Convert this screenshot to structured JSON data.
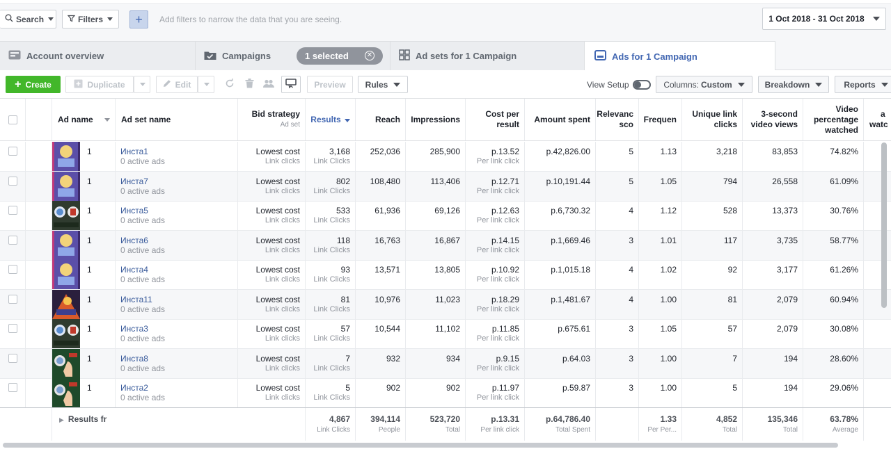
{
  "filterbar": {
    "search_label": "Search",
    "filters_label": "Filters",
    "add_label": "+",
    "placeholder": "Add filters to narrow the data that you are seeing.",
    "date_range": "1 Oct 2018 - 31 Oct 2018"
  },
  "tabs": {
    "account": "Account overview",
    "campaigns": "Campaigns",
    "selected": "1 selected",
    "adsets": "Ad sets for 1 Campaign",
    "ads": "Ads for 1 Campaign"
  },
  "toolbar": {
    "create": "Create",
    "duplicate": "Duplicate",
    "edit": "Edit",
    "preview": "Preview",
    "rules": "Rules",
    "view_setup": "View Setup",
    "columns_prefix": "Columns:",
    "columns_value": "Custom",
    "breakdown": "Breakdown",
    "reports": "Reports"
  },
  "headers": {
    "ad_name": "Ad name",
    "ad_set_name": "Ad set name",
    "bid_strategy": "Bid strategy",
    "bid_strategy_sub": "Ad set",
    "results": "Results",
    "reach": "Reach",
    "impressions": "Impressions",
    "cost_per_result_1": "Cost per",
    "cost_per_result_2": "result",
    "amount_spent": "Amount spent",
    "relevance_1": "Relevanc",
    "relevance_2": "sco",
    "frequency": "Frequen",
    "unique_1": "Unique link",
    "unique_2": "clicks",
    "video3_1": "3-second",
    "video3_2": "video views",
    "vpw_1": "Video",
    "vpw_2": "percentage",
    "vpw_3": "watched",
    "next_1": "a",
    "next_2": "watc"
  },
  "rows": [
    {
      "num": "1",
      "adset": "Инста1",
      "active": "0 active ads",
      "bid": "Lowest cost",
      "bid_sub": "Link clicks",
      "results": "3,168",
      "results_sub": "Link Clicks",
      "reach": "252,036",
      "impressions": "285,900",
      "cpr": "p.13.52",
      "cpr_sub": "Per link click",
      "spent": "p.42,826.00",
      "relevance": "5",
      "frequency": "1.13",
      "unique": "3,218",
      "video3": "83,853",
      "vpw": "74.82%"
    },
    {
      "num": "1",
      "adset": "Инста7",
      "active": "0 active ads",
      "bid": "Lowest cost",
      "bid_sub": "Link clicks",
      "results": "802",
      "results_sub": "Link Clicks",
      "reach": "108,480",
      "impressions": "113,406",
      "cpr": "p.12.71",
      "cpr_sub": "Per link click",
      "spent": "p.10,191.44",
      "relevance": "5",
      "frequency": "1.05",
      "unique": "794",
      "video3": "26,558",
      "vpw": "61.09%"
    },
    {
      "num": "1",
      "adset": "Инста5",
      "active": "0 active ads",
      "bid": "Lowest cost",
      "bid_sub": "Link clicks",
      "results": "533",
      "results_sub": "Link Clicks",
      "reach": "61,936",
      "impressions": "69,126",
      "cpr": "p.12.63",
      "cpr_sub": "Per link click",
      "spent": "p.6,730.32",
      "relevance": "4",
      "frequency": "1.12",
      "unique": "528",
      "video3": "13,373",
      "vpw": "30.76%"
    },
    {
      "num": "1",
      "adset": "Инста6",
      "active": "0 active ads",
      "bid": "Lowest cost",
      "bid_sub": "Link clicks",
      "results": "118",
      "results_sub": "Link Clicks",
      "reach": "16,763",
      "impressions": "16,867",
      "cpr": "p.14.15",
      "cpr_sub": "Per link click",
      "spent": "p.1,669.46",
      "relevance": "3",
      "frequency": "1.01",
      "unique": "117",
      "video3": "3,735",
      "vpw": "58.77%"
    },
    {
      "num": "1",
      "adset": "Инста4",
      "active": "0 active ads",
      "bid": "Lowest cost",
      "bid_sub": "Link clicks",
      "results": "93",
      "results_sub": "Link Clicks",
      "reach": "13,571",
      "impressions": "13,805",
      "cpr": "p.10.92",
      "cpr_sub": "Per link click",
      "spent": "p.1,015.18",
      "relevance": "4",
      "frequency": "1.02",
      "unique": "92",
      "video3": "3,177",
      "vpw": "61.26%"
    },
    {
      "num": "1",
      "adset": "Инста11",
      "active": "0 active ads",
      "bid": "Lowest cost",
      "bid_sub": "Link clicks",
      "results": "81",
      "results_sub": "Link Clicks",
      "reach": "10,976",
      "impressions": "11,023",
      "cpr": "p.18.29",
      "cpr_sub": "Per link click",
      "spent": "p.1,481.67",
      "relevance": "4",
      "frequency": "1.00",
      "unique": "81",
      "video3": "2,079",
      "vpw": "60.94%"
    },
    {
      "num": "1",
      "adset": "Инста3",
      "active": "0 active ads",
      "bid": "Lowest cost",
      "bid_sub": "Link clicks",
      "results": "57",
      "results_sub": "Link Clicks",
      "reach": "10,544",
      "impressions": "11,102",
      "cpr": "p.11.85",
      "cpr_sub": "Per link click",
      "spent": "p.675.61",
      "relevance": "3",
      "frequency": "1.05",
      "unique": "57",
      "video3": "2,079",
      "vpw": "30.08%"
    },
    {
      "num": "1",
      "adset": "Инста8",
      "active": "0 active ads",
      "bid": "Lowest cost",
      "bid_sub": "Link clicks",
      "results": "7",
      "results_sub": "Link Clicks",
      "reach": "932",
      "impressions": "934",
      "cpr": "p.9.15",
      "cpr_sub": "Per link click",
      "spent": "p.64.03",
      "relevance": "3",
      "frequency": "1.00",
      "unique": "7",
      "video3": "194",
      "vpw": "28.60%"
    },
    {
      "num": "1",
      "adset": "Инста2",
      "active": "0 active ads",
      "bid": "Lowest cost",
      "bid_sub": "Link clicks",
      "results": "5",
      "results_sub": "Link Clicks",
      "reach": "902",
      "impressions": "902",
      "cpr": "p.11.97",
      "cpr_sub": "Per link click",
      "spent": "p.59.87",
      "relevance": "3",
      "frequency": "1.00",
      "unique": "5",
      "video3": "194",
      "vpw": "29.06%"
    }
  ],
  "thumbnails": [
    "purple",
    "purple",
    "badge",
    "purple",
    "purple",
    "orange",
    "badge",
    "green",
    "green"
  ],
  "footer": {
    "label": "Results fr",
    "results": "4,867",
    "results_sub": "Link Clicks",
    "reach": "394,114",
    "reach_sub": "People",
    "impressions": "523,720",
    "impressions_sub": "Total",
    "cpr": "p.13.31",
    "cpr_sub": "Per link click",
    "spent": "p.64,786.40",
    "spent_sub": "Total Spent",
    "frequency": "1.33",
    "frequency_sub": "Per Per...",
    "unique": "4,852",
    "unique_sub": "Total",
    "video3": "135,346",
    "video3_sub": "Total",
    "vpw": "63.78%",
    "vpw_sub": "Average"
  },
  "colors": {
    "accent": "#4267b2",
    "create_green": "#42b72a",
    "toggle_blue": "#4080ff",
    "link": "#365899"
  }
}
